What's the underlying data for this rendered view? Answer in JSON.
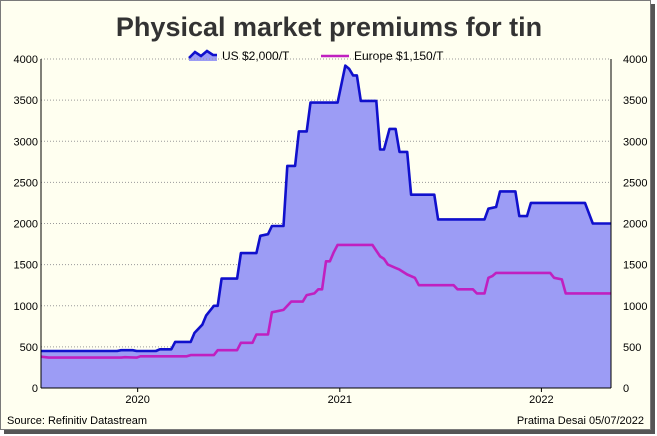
{
  "chart_data": {
    "type": "area",
    "title": "Physical market premiums for tin",
    "ylim": [
      0,
      4000
    ],
    "yticks": [
      0,
      500,
      1000,
      1500,
      2000,
      2500,
      3000,
      3500,
      4000
    ],
    "xlim": [
      "2019-07-10",
      "2022-05-07"
    ],
    "xticks": [
      {
        "label": "2020",
        "date": "2020-01-01"
      },
      {
        "label": "2021",
        "date": "2021-01-01"
      },
      {
        "label": "2022",
        "date": "2022-01-01"
      }
    ],
    "grid": true,
    "legend_position": "top-center",
    "series": [
      {
        "name": "US $2,000/T",
        "style": "area",
        "line_color": "#1010cc",
        "fill_color": "#9c9cf5",
        "points": [
          [
            "2019-07-10",
            450
          ],
          [
            "2019-11-25",
            450
          ],
          [
            "2019-12-02",
            460
          ],
          [
            "2019-12-23",
            460
          ],
          [
            "2019-12-30",
            450
          ],
          [
            "2020-02-03",
            450
          ],
          [
            "2020-02-10",
            470
          ],
          [
            "2020-03-02",
            470
          ],
          [
            "2020-03-09",
            560
          ],
          [
            "2020-04-06",
            560
          ],
          [
            "2020-04-13",
            670
          ],
          [
            "2020-04-27",
            770
          ],
          [
            "2020-05-04",
            880
          ],
          [
            "2020-05-18",
            1000
          ],
          [
            "2020-05-25",
            1000
          ],
          [
            "2020-06-01",
            1330
          ],
          [
            "2020-06-29",
            1330
          ],
          [
            "2020-07-06",
            1640
          ],
          [
            "2020-08-03",
            1640
          ],
          [
            "2020-08-10",
            1850
          ],
          [
            "2020-08-24",
            1870
          ],
          [
            "2020-08-31",
            1970
          ],
          [
            "2020-09-21",
            1970
          ],
          [
            "2020-09-28",
            2700
          ],
          [
            "2020-10-12",
            2700
          ],
          [
            "2020-10-19",
            3120
          ],
          [
            "2020-11-02",
            3120
          ],
          [
            "2020-11-09",
            3470
          ],
          [
            "2020-12-28",
            3470
          ],
          [
            "2021-01-11",
            3920
          ],
          [
            "2021-01-18",
            3880
          ],
          [
            "2021-01-25",
            3800
          ],
          [
            "2021-02-01",
            3800
          ],
          [
            "2021-02-08",
            3490
          ],
          [
            "2021-03-08",
            3490
          ],
          [
            "2021-03-15",
            2900
          ],
          [
            "2021-03-22",
            2900
          ],
          [
            "2021-04-01",
            3150
          ],
          [
            "2021-04-12",
            3150
          ],
          [
            "2021-04-19",
            2870
          ],
          [
            "2021-05-03",
            2870
          ],
          [
            "2021-05-10",
            2350
          ],
          [
            "2021-06-21",
            2350
          ],
          [
            "2021-06-28",
            2050
          ],
          [
            "2021-09-20",
            2050
          ],
          [
            "2021-09-27",
            2180
          ],
          [
            "2021-10-11",
            2200
          ],
          [
            "2021-10-18",
            2390
          ],
          [
            "2021-11-15",
            2390
          ],
          [
            "2021-11-22",
            2090
          ],
          [
            "2021-12-06",
            2090
          ],
          [
            "2021-12-13",
            2250
          ],
          [
            "2022-03-21",
            2250
          ],
          [
            "2022-04-04",
            2000
          ],
          [
            "2022-05-07",
            2000
          ]
        ]
      },
      {
        "name": "Europe $1,150/T",
        "style": "line",
        "line_color": "#c020c0",
        "points": [
          [
            "2019-07-10",
            380
          ],
          [
            "2019-07-24",
            370
          ],
          [
            "2019-12-02",
            370
          ],
          [
            "2019-12-09",
            375
          ],
          [
            "2019-12-30",
            370
          ],
          [
            "2020-01-06",
            385
          ],
          [
            "2020-03-30",
            385
          ],
          [
            "2020-04-06",
            400
          ],
          [
            "2020-05-18",
            400
          ],
          [
            "2020-05-25",
            460
          ],
          [
            "2020-06-29",
            460
          ],
          [
            "2020-07-06",
            550
          ],
          [
            "2020-07-27",
            550
          ],
          [
            "2020-08-03",
            650
          ],
          [
            "2020-08-24",
            650
          ],
          [
            "2020-08-31",
            920
          ],
          [
            "2020-09-21",
            950
          ],
          [
            "2020-10-05",
            1050
          ],
          [
            "2020-10-26",
            1050
          ],
          [
            "2020-11-02",
            1130
          ],
          [
            "2020-11-16",
            1150
          ],
          [
            "2020-11-23",
            1200
          ],
          [
            "2020-11-30",
            1200
          ],
          [
            "2020-12-07",
            1540
          ],
          [
            "2020-12-14",
            1540
          ],
          [
            "2020-12-21",
            1650
          ],
          [
            "2020-12-28",
            1740
          ],
          [
            "2021-03-01",
            1740
          ],
          [
            "2021-03-15",
            1600
          ],
          [
            "2021-03-22",
            1570
          ],
          [
            "2021-03-29",
            1500
          ],
          [
            "2021-04-12",
            1460
          ],
          [
            "2021-04-19",
            1440
          ],
          [
            "2021-05-03",
            1380
          ],
          [
            "2021-05-17",
            1340
          ],
          [
            "2021-05-24",
            1250
          ],
          [
            "2021-07-26",
            1250
          ],
          [
            "2021-08-02",
            1200
          ],
          [
            "2021-08-30",
            1200
          ],
          [
            "2021-09-06",
            1150
          ],
          [
            "2021-09-20",
            1150
          ],
          [
            "2021-09-27",
            1340
          ],
          [
            "2021-10-04",
            1360
          ],
          [
            "2021-10-11",
            1400
          ],
          [
            "2021-12-27",
            1400
          ],
          [
            "2022-01-17",
            1400
          ],
          [
            "2022-01-24",
            1340
          ],
          [
            "2022-02-07",
            1320
          ],
          [
            "2022-02-14",
            1150
          ],
          [
            "2022-05-07",
            1150
          ]
        ]
      }
    ]
  },
  "footer": {
    "source": "Source: Refinitiv Datastream",
    "credit": "Pratima Desai 05/07/2022"
  }
}
